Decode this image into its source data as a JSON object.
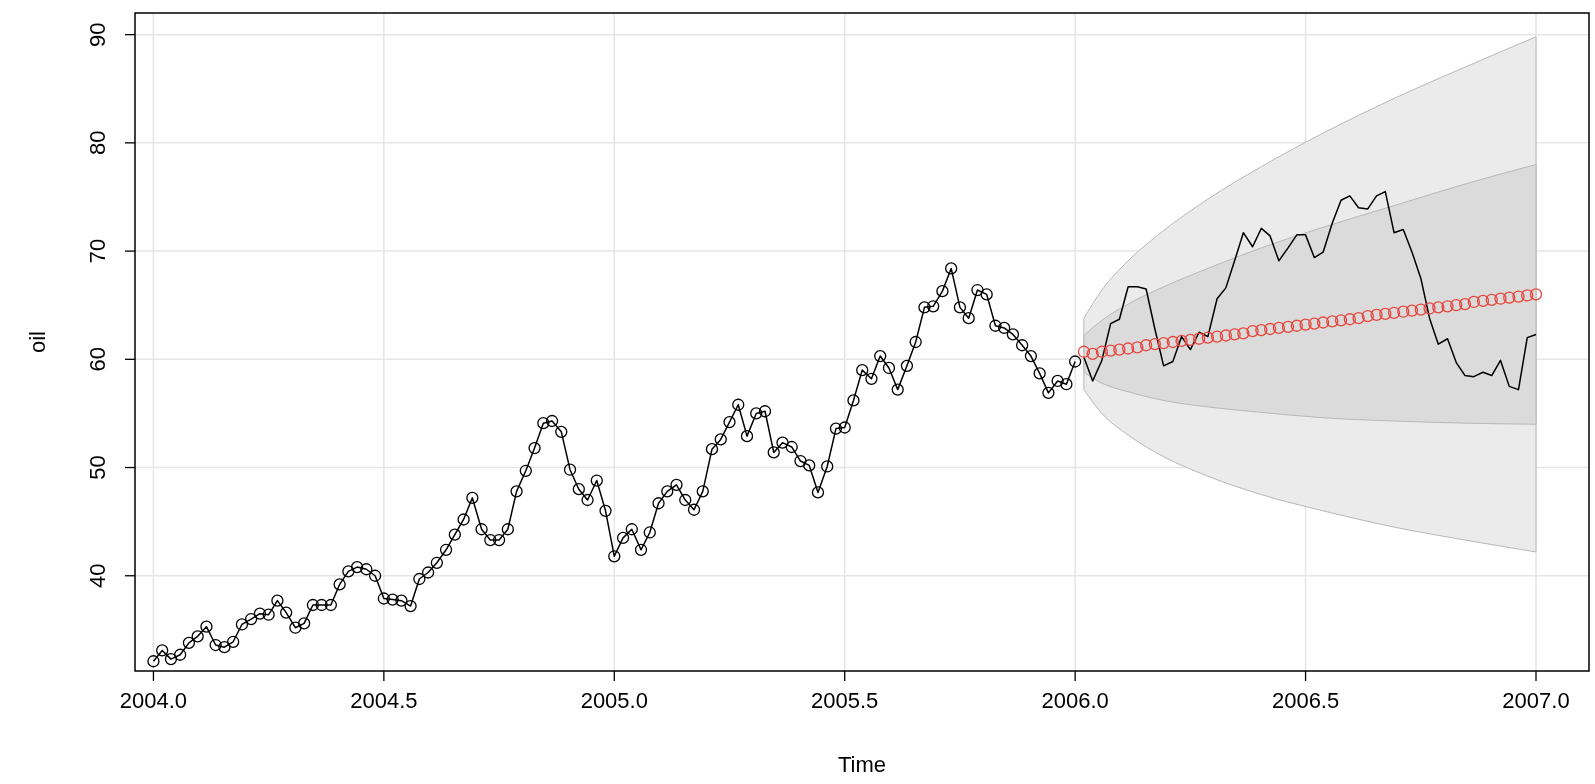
{
  "chart_data": {
    "type": "line",
    "xlabel": "Time",
    "ylabel": "oil",
    "xlim": [
      2003.96,
      2007.115
    ],
    "ylim": [
      31.2,
      92.0
    ],
    "xticks": [
      {
        "value": 2004,
        "label": "2004.0"
      },
      {
        "value": 2004.5,
        "label": "2004.5"
      },
      {
        "value": 2005,
        "label": "2005.0"
      },
      {
        "value": 2005.5,
        "label": "2005.5"
      },
      {
        "value": 2006,
        "label": "2006.0"
      },
      {
        "value": 2006.5,
        "label": "2006.5"
      },
      {
        "value": 2007,
        "label": "2007.0"
      }
    ],
    "yticks": [
      40,
      50,
      60,
      70,
      80,
      90
    ],
    "grid": true,
    "series": [
      {
        "type": "area",
        "color": "#ebebeb",
        "x": [
          2006.019,
          2006.058,
          2006.115,
          2006.192,
          2006.288,
          2006.404,
          2006.538,
          2006.692,
          2006.846,
          2007.0
        ],
        "values": [
          null,
          null,
          null,
          null,
          null,
          null,
          null,
          null,
          null,
          null
        ],
        "lower": [
          57.2,
          55.0,
          53.0,
          51.0,
          49.2,
          47.5,
          46.0,
          44.5,
          43.3,
          42.2
        ],
        "upper": [
          63.8,
          66.4,
          69.1,
          71.9,
          74.8,
          77.8,
          80.9,
          84.1,
          87.0,
          89.8
        ]
      },
      {
        "type": "area",
        "color": "#dbdbdb",
        "x": [
          2006.019,
          2006.058,
          2006.115,
          2006.192,
          2006.288,
          2006.404,
          2006.538,
          2006.692,
          2006.846,
          2007.0
        ],
        "values": [
          null,
          null,
          null,
          null,
          null,
          null,
          null,
          null,
          null,
          null
        ],
        "lower": [
          58.8,
          57.8,
          57.0,
          56.2,
          55.6,
          55.1,
          54.6,
          54.3,
          54.1,
          54.0
        ],
        "upper": [
          62.2,
          63.6,
          65.1,
          66.7,
          68.4,
          70.3,
          72.2,
          74.2,
          76.2,
          78.0
        ]
      },
      {
        "type": "line",
        "color": "#000000",
        "marker": "circle",
        "x": [
          2004.0,
          2004.019,
          2004.038,
          2004.058,
          2004.077,
          2004.096,
          2004.115,
          2004.135,
          2004.154,
          2004.173,
          2004.192,
          2004.212,
          2004.231,
          2004.25,
          2004.269,
          2004.288,
          2004.308,
          2004.327,
          2004.346,
          2004.365,
          2004.385,
          2004.404,
          2004.423,
          2004.442,
          2004.462,
          2004.481,
          2004.5,
          2004.519,
          2004.538,
          2004.558,
          2004.577,
          2004.596,
          2004.615,
          2004.635,
          2004.654,
          2004.673,
          2004.692,
          2004.712,
          2004.731,
          2004.75,
          2004.769,
          2004.788,
          2004.808,
          2004.827,
          2004.846,
          2004.865,
          2004.885,
          2004.904,
          2004.923,
          2004.942,
          2004.962,
          2004.981,
          2005.0,
          2005.019,
          2005.038,
          2005.058,
          2005.077,
          2005.096,
          2005.115,
          2005.135,
          2005.154,
          2005.173,
          2005.192,
          2005.212,
          2005.231,
          2005.25,
          2005.269,
          2005.288,
          2005.308,
          2005.327,
          2005.346,
          2005.365,
          2005.385,
          2005.404,
          2005.423,
          2005.442,
          2005.462,
          2005.481,
          2005.5,
          2005.519,
          2005.538,
          2005.558,
          2005.577,
          2005.596,
          2005.615,
          2005.635,
          2005.654,
          2005.673,
          2005.692,
          2005.712,
          2005.731,
          2005.75,
          2005.769,
          2005.788,
          2005.808,
          2005.827,
          2005.846,
          2005.865,
          2005.885,
          2005.904,
          2005.923,
          2005.942,
          2005.962,
          2005.981,
          2006.0
        ],
        "values": [
          32.1,
          33.1,
          32.3,
          32.7,
          33.8,
          34.4,
          35.3,
          33.6,
          33.4,
          33.9,
          35.5,
          36.0,
          36.5,
          36.4,
          37.7,
          36.6,
          35.2,
          35.6,
          37.3,
          37.3,
          37.3,
          39.2,
          40.4,
          40.8,
          40.6,
          40.0,
          37.9,
          37.8,
          37.7,
          37.2,
          39.7,
          40.3,
          41.2,
          42.4,
          43.8,
          45.2,
          47.2,
          44.3,
          43.3,
          43.3,
          44.3,
          47.8,
          49.7,
          51.8,
          54.1,
          54.3,
          53.3,
          49.8,
          48.0,
          47.0,
          48.8,
          46.0,
          41.8,
          43.5,
          44.3,
          42.4,
          44.0,
          46.7,
          47.8,
          48.4,
          47.0,
          46.1,
          47.8,
          51.7,
          52.6,
          54.2,
          55.8,
          52.9,
          55.0,
          55.2,
          51.4,
          52.3,
          51.9,
          50.6,
          50.2,
          47.7,
          50.1,
          53.6,
          53.7,
          56.2,
          59.0,
          58.2,
          60.3,
          59.2,
          57.2,
          59.4,
          61.6,
          64.8,
          64.9,
          66.3,
          68.4,
          64.8,
          63.8,
          66.4,
          66.0,
          63.1,
          62.9,
          62.3,
          61.3,
          60.3,
          58.7,
          56.9,
          58.0,
          57.7,
          59.8
        ]
      },
      {
        "type": "line",
        "color": "#000000",
        "x": [
          2006.019,
          2006.038,
          2006.058,
          2006.077,
          2006.096,
          2006.115,
          2006.135,
          2006.154,
          2006.173,
          2006.192,
          2006.212,
          2006.231,
          2006.25,
          2006.269,
          2006.288,
          2006.308,
          2006.327,
          2006.346,
          2006.365,
          2006.385,
          2006.404,
          2006.423,
          2006.442,
          2006.462,
          2006.481,
          2006.5,
          2006.519,
          2006.538,
          2006.558,
          2006.577,
          2006.596,
          2006.615,
          2006.635,
          2006.654,
          2006.673,
          2006.692,
          2006.712,
          2006.731,
          2006.75,
          2006.769,
          2006.788,
          2006.808,
          2006.827,
          2006.846,
          2006.865,
          2006.885,
          2006.904,
          2006.923,
          2006.942,
          2006.962,
          2006.981,
          2007.0
        ],
        "values": [
          60.2,
          58.0,
          59.9,
          63.3,
          63.7,
          66.7,
          66.7,
          66.5,
          62.8,
          59.4,
          59.8,
          62.1,
          60.9,
          62.5,
          62.1,
          65.6,
          66.6,
          69.1,
          71.7,
          70.4,
          72.1,
          71.4,
          69.1,
          70.3,
          71.5,
          71.5,
          69.4,
          69.9,
          72.6,
          74.7,
          75.1,
          74.0,
          73.9,
          75.1,
          75.5,
          71.7,
          72.0,
          69.9,
          67.5,
          63.8,
          61.4,
          61.9,
          59.7,
          58.5,
          58.4,
          58.8,
          58.5,
          59.9,
          57.5,
          57.2,
          62.0,
          62.3
        ]
      },
      {
        "type": "scatter",
        "color": "#e8453c",
        "marker": "circle",
        "x": [
          2006.019,
          2006.038,
          2006.058,
          2006.077,
          2006.096,
          2006.115,
          2006.135,
          2006.154,
          2006.173,
          2006.192,
          2006.212,
          2006.231,
          2006.25,
          2006.269,
          2006.288,
          2006.308,
          2006.327,
          2006.346,
          2006.365,
          2006.385,
          2006.404,
          2006.423,
          2006.442,
          2006.462,
          2006.481,
          2006.5,
          2006.519,
          2006.538,
          2006.558,
          2006.577,
          2006.596,
          2006.615,
          2006.635,
          2006.654,
          2006.673,
          2006.692,
          2006.712,
          2006.731,
          2006.75,
          2006.769,
          2006.788,
          2006.808,
          2006.827,
          2006.846,
          2006.865,
          2006.885,
          2006.904,
          2006.923,
          2006.942,
          2006.962,
          2006.981,
          2007.0
        ],
        "values": [
          60.7,
          60.5,
          60.7,
          60.8,
          60.9,
          61.0,
          61.1,
          61.3,
          61.4,
          61.5,
          61.6,
          61.7,
          61.8,
          61.9,
          62.0,
          62.1,
          62.2,
          62.3,
          62.4,
          62.6,
          62.7,
          62.8,
          62.9,
          63.0,
          63.1,
          63.2,
          63.3,
          63.4,
          63.5,
          63.6,
          63.7,
          63.8,
          64.0,
          64.1,
          64.2,
          64.3,
          64.4,
          64.5,
          64.6,
          64.7,
          64.8,
          64.9,
          65.0,
          65.1,
          65.3,
          65.4,
          65.5,
          65.6,
          65.7,
          65.8,
          65.9,
          66.0
        ]
      }
    ]
  }
}
